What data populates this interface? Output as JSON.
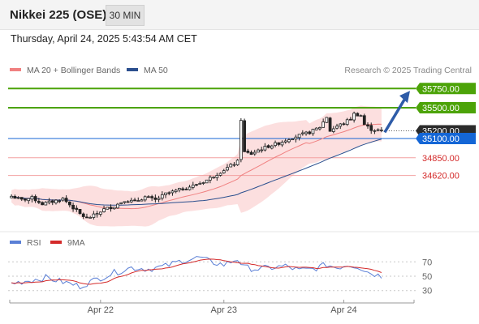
{
  "header": {
    "title": "Nikkei 225 (OSE)",
    "timeframe": "30 MIN",
    "datetime": "Thursday, April 24, 2025 5:43:54 AM CET"
  },
  "legend": {
    "price": [
      {
        "label": "MA 20 + Bollinger Bands",
        "color": "#f08080"
      },
      {
        "label": "MA 50",
        "color": "#2b4f8e"
      }
    ],
    "source": "Research © 2025 Trading Central",
    "rsi": [
      {
        "label": "RSI",
        "color": "#5a7fd6"
      },
      {
        "label": "9MA",
        "color": "#d42a2a"
      }
    ]
  },
  "chart_data": {
    "type": "candlestick",
    "x_ticks": [
      "Apr 22",
      "Apr 23",
      "Apr 24"
    ],
    "levels": [
      {
        "value": 35750,
        "label": "35750.00",
        "type": "resistance",
        "color": "#4ca308"
      },
      {
        "value": 35500,
        "label": "35500.00",
        "type": "resistance",
        "color": "#4ca308"
      },
      {
        "value": 35200,
        "label": "35200.00",
        "type": "last",
        "color": "#2b2b2b"
      },
      {
        "value": 35100,
        "label": "35100.00",
        "type": "pivot",
        "color": "#1466d6"
      },
      {
        "value": 34850,
        "label": "34850.00",
        "type": "support",
        "color": "#d42a2a"
      },
      {
        "value": 34620,
        "label": "34620.00",
        "type": "support",
        "color": "#d42a2a"
      }
    ],
    "arrow": {
      "from": 35180,
      "to": 35720,
      "direction": "up",
      "color": "#2e5ca8"
    },
    "price_path": [
      [
        0,
        34350
      ],
      [
        3,
        34300
      ],
      [
        6,
        34330
      ],
      [
        9,
        34250
      ],
      [
        12,
        34280
      ],
      [
        15,
        34320
      ],
      [
        18,
        34200
      ],
      [
        20,
        34120
      ],
      [
        22,
        34060
      ],
      [
        24,
        34100
      ],
      [
        27,
        34180
      ],
      [
        30,
        34220
      ],
      [
        33,
        34300
      ],
      [
        36,
        34280
      ],
      [
        39,
        34340
      ],
      [
        42,
        34300
      ],
      [
        45,
        34380
      ],
      [
        48,
        34420
      ],
      [
        51,
        34460
      ],
      [
        54,
        34500
      ],
      [
        57,
        34560
      ],
      [
        60,
        34640
      ],
      [
        63,
        34720
      ],
      [
        66,
        34800
      ],
      [
        67,
        35350
      ],
      [
        68,
        34920
      ],
      [
        70,
        34900
      ],
      [
        72,
        34950
      ],
      [
        75,
        35000
      ],
      [
        78,
        35040
      ],
      [
        81,
        35100
      ],
      [
        84,
        35140
      ],
      [
        87,
        35180
      ],
      [
        90,
        35250
      ],
      [
        92,
        35380
      ],
      [
        93,
        35200
      ],
      [
        95,
        35260
      ],
      [
        97,
        35300
      ],
      [
        99,
        35360
      ],
      [
        100,
        35420
      ],
      [
        102,
        35400
      ],
      [
        103,
        35280
      ],
      [
        105,
        35220
      ],
      [
        108,
        35200
      ]
    ],
    "n_candles": 109,
    "price_range": [
      33900,
      35900
    ],
    "rsi_ticks": [
      70,
      50,
      30
    ],
    "rsi_range": [
      15,
      85
    ],
    "rsi_path": [
      [
        0,
        40
      ],
      [
        5,
        44
      ],
      [
        10,
        48
      ],
      [
        15,
        42
      ],
      [
        20,
        36
      ],
      [
        25,
        46
      ],
      [
        30,
        55
      ],
      [
        35,
        62
      ],
      [
        40,
        60
      ],
      [
        45,
        64
      ],
      [
        50,
        72
      ],
      [
        55,
        76
      ],
      [
        58,
        70
      ],
      [
        62,
        66
      ],
      [
        66,
        74
      ],
      [
        68,
        62
      ],
      [
        72,
        60
      ],
      [
        76,
        62
      ],
      [
        80,
        64
      ],
      [
        84,
        58
      ],
      [
        88,
        60
      ],
      [
        92,
        66
      ],
      [
        95,
        62
      ],
      [
        98,
        66
      ],
      [
        101,
        64
      ],
      [
        104,
        56
      ],
      [
        108,
        50
      ]
    ]
  }
}
